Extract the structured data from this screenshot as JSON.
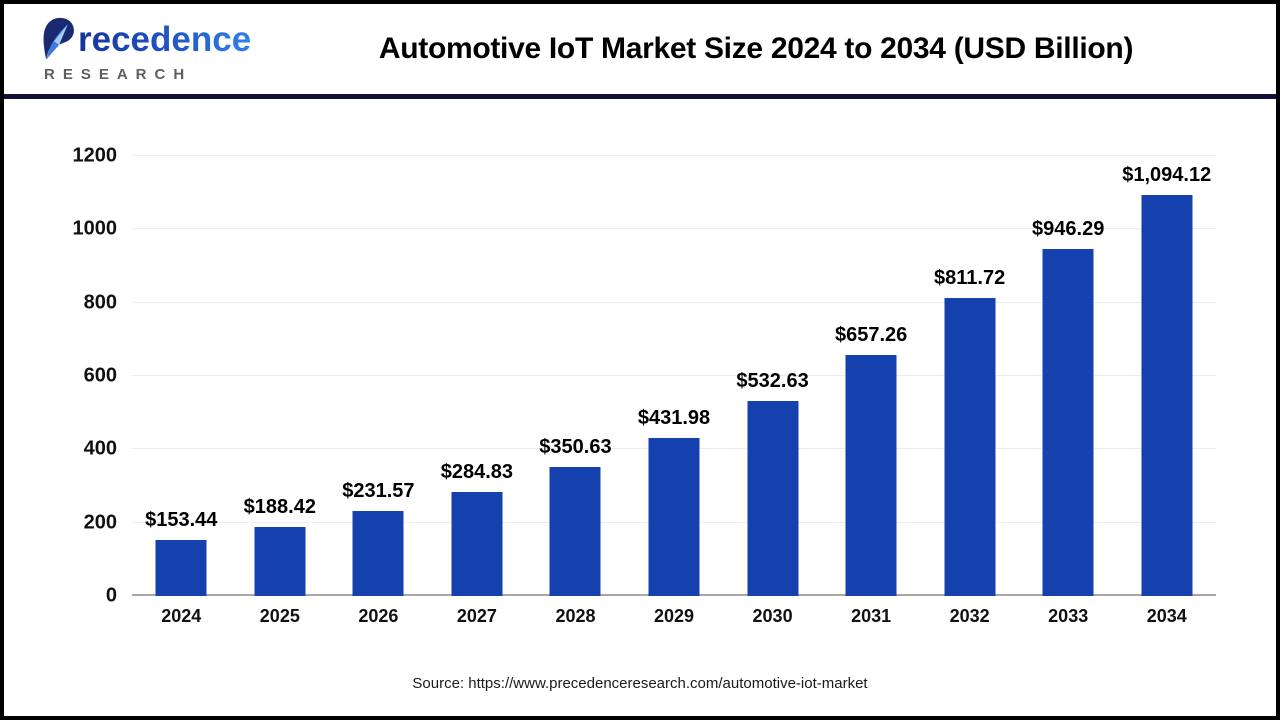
{
  "header": {
    "brand_name": "recedence",
    "brand_sub": "RESEARCH",
    "title": "Automotive IoT Market Size 2024 to 2034 (USD Billion)"
  },
  "chart_data": {
    "type": "bar",
    "title": "Automotive IoT Market Size 2024 to 2034 (USD Billion)",
    "categories": [
      "2024",
      "2025",
      "2026",
      "2027",
      "2028",
      "2029",
      "2030",
      "2031",
      "2032",
      "2033",
      "2034"
    ],
    "values": [
      153.44,
      188.42,
      231.57,
      284.83,
      350.63,
      431.98,
      532.63,
      657.26,
      811.72,
      946.29,
      1094.12
    ],
    "value_labels": [
      "$153.44",
      "$188.42",
      "$231.57",
      "$284.83",
      "$350.63",
      "$431.98",
      "$532.63",
      "$657.26",
      "$811.72",
      "$946.29",
      "$1,094.12"
    ],
    "xlabel": "",
    "ylabel": "",
    "ylim": [
      0,
      1200
    ],
    "yticks": [
      0,
      200,
      400,
      600,
      800,
      1000,
      1200
    ],
    "ytick_labels": [
      "0",
      "200",
      "400",
      "600",
      "800",
      "1000",
      "1200"
    ],
    "grid": true,
    "legend": false,
    "bar_color": "#1441ae",
    "axis_line_color": "#a8a8a8",
    "gridline_color": "#ededed"
  },
  "footer": {
    "source": "Source: https://www.precedenceresearch.com/automotive-iot-market"
  },
  "colors": {
    "bar": "#1441ae",
    "header_rule": "#0f1233",
    "frame_border": "#000000",
    "brand_navy": "#1b2a70",
    "brand_blue": "#2257c5",
    "brand_light_blue": "#3c7de0",
    "brand_gray": "#5f5f5f"
  }
}
